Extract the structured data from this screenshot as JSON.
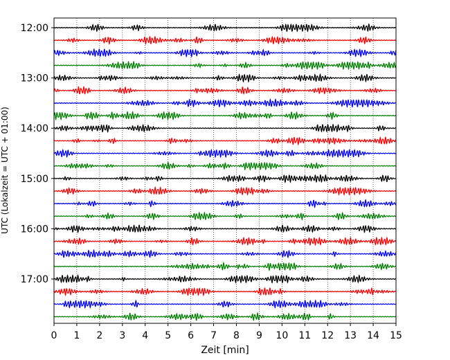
{
  "chart_data": {
    "type": "line",
    "title": "",
    "xlabel": "Zeit  [min]",
    "ylabel": "UTC (Lokalzeit = UTC + 01:00)",
    "xlim": [
      0,
      15
    ],
    "x_ticks": [
      0,
      1,
      2,
      3,
      4,
      5,
      6,
      7,
      8,
      9,
      10,
      11,
      12,
      13,
      14,
      15
    ],
    "x_tick_labels": [
      "0",
      "1",
      "2",
      "3",
      "4",
      "5",
      "6",
      "7",
      "8",
      "9",
      "10",
      "11",
      "12",
      "13",
      "14",
      "15"
    ],
    "y_ticks": [
      {
        "label": "12:00",
        "row": 0
      },
      {
        "label": "13:00",
        "row": 4
      },
      {
        "label": "14:00",
        "row": 8
      },
      {
        "label": "15:00",
        "row": 12
      },
      {
        "label": "16:00",
        "row": 16
      },
      {
        "label": "17:00",
        "row": 20
      }
    ],
    "grid": "vertical dotted at each minute",
    "traces": {
      "start_time_utc": "12:00",
      "minutes_per_trace": 15,
      "count": 24,
      "color_cycle": [
        "#000000",
        "#ff0000",
        "#0000ff",
        "#008000"
      ],
      "waveform": "continuous seismogram, amplitude not scaled to data units"
    }
  }
}
